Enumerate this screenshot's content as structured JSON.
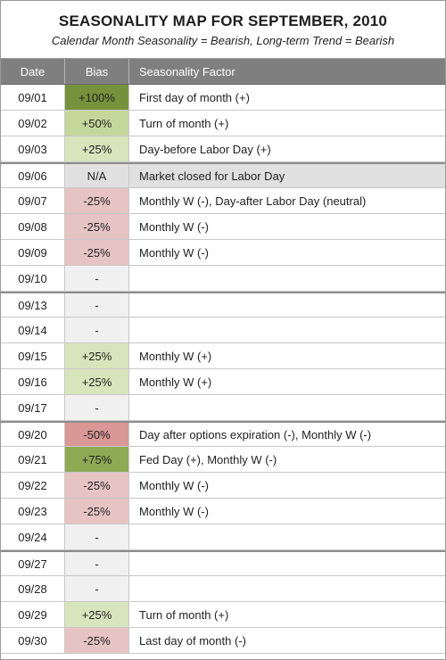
{
  "title": "SEASONALITY MAP FOR SEPTEMBER, 2010",
  "subtitle": "Calendar Month Seasonality = Bearish, Long-term Trend = Bearish",
  "headers": {
    "date": "Date",
    "bias": "Bias",
    "factor": "Seasonality Factor"
  },
  "colors": {
    "header_bg": "#7f7f7f",
    "strong_bull": "#76923c",
    "bull": "#c4d79b",
    "mild_bull": "#d8e4bc",
    "bear": "#e6b8b7",
    "mild_bear": "#f2dcdb",
    "strong_bear": "#d99795",
    "neutral": "#e0e0e0"
  },
  "rows": [
    {
      "date": "09/01",
      "bias": "+100%",
      "factor": "First day of month (+)",
      "tone": "strong_bull"
    },
    {
      "date": "09/02",
      "bias": "+50%",
      "factor": "Turn of month (+)",
      "tone": "bull"
    },
    {
      "date": "09/03",
      "bias": "+25%",
      "factor": "Day-before Labor Day (+)",
      "tone": "mild_bull"
    },
    {
      "date": "09/06",
      "bias": "N/A",
      "factor": "Market closed for Labor Day",
      "tone": "neutral",
      "break": true,
      "closed": true
    },
    {
      "date": "09/07",
      "bias": "-25%",
      "factor": "Monthly W (-), Day-after Labor Day (neutral)",
      "tone": "mild_bear"
    },
    {
      "date": "09/08",
      "bias": "-25%",
      "factor": "Monthly W (-)",
      "tone": "mild_bear"
    },
    {
      "date": "09/09",
      "bias": "-25%",
      "factor": "Monthly W (-)",
      "tone": "mild_bear"
    },
    {
      "date": "09/10",
      "bias": "-",
      "factor": "",
      "tone": "none"
    },
    {
      "date": "09/13",
      "bias": "-",
      "factor": "",
      "tone": "none",
      "break": true
    },
    {
      "date": "09/14",
      "bias": "-",
      "factor": "",
      "tone": "none"
    },
    {
      "date": "09/15",
      "bias": "+25%",
      "factor": "Monthly W (+)",
      "tone": "mild_bull"
    },
    {
      "date": "09/16",
      "bias": "+25%",
      "factor": "Monthly W (+)",
      "tone": "mild_bull"
    },
    {
      "date": "09/17",
      "bias": "-",
      "factor": "",
      "tone": "none"
    },
    {
      "date": "09/20",
      "bias": "-50%",
      "factor": "Day after options expiration (-), Monthly W (-)",
      "tone": "strong_bear",
      "break": true
    },
    {
      "date": "09/21",
      "bias": "+75%",
      "factor": "Fed Day (+), Monthly W (-)",
      "tone": "strong_bull2"
    },
    {
      "date": "09/22",
      "bias": "-25%",
      "factor": "Monthly W (-)",
      "tone": "mild_bear"
    },
    {
      "date": "09/23",
      "bias": "-25%",
      "factor": "Monthly W (-)",
      "tone": "mild_bear"
    },
    {
      "date": "09/24",
      "bias": "-",
      "factor": "",
      "tone": "none"
    },
    {
      "date": "09/27",
      "bias": "-",
      "factor": "",
      "tone": "none",
      "break": true
    },
    {
      "date": "09/28",
      "bias": "-",
      "factor": "",
      "tone": "none"
    },
    {
      "date": "09/29",
      "bias": "+25%",
      "factor": "Turn of month (+)",
      "tone": "mild_bull"
    },
    {
      "date": "09/30",
      "bias": "-25%",
      "factor": "Last day of month (-)",
      "tone": "mild_bear"
    }
  ]
}
